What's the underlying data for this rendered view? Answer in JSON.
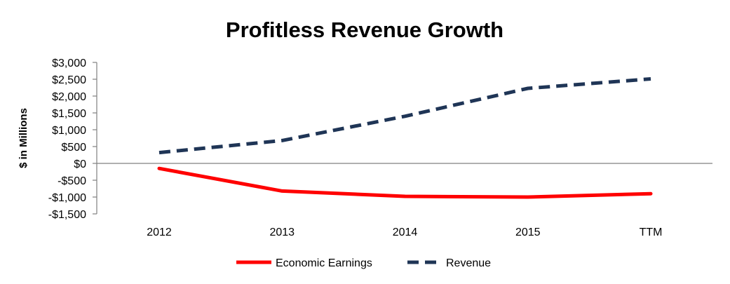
{
  "chart_data": {
    "type": "line",
    "title": "Profitless Revenue Growth",
    "ylabel": "$ in Millions",
    "xlabel": "",
    "categories": [
      "2012",
      "2013",
      "2014",
      "2015",
      "TTM"
    ],
    "ylim": [
      -1500,
      3000
    ],
    "yticks": [
      3000,
      2500,
      2000,
      1500,
      1000,
      500,
      0,
      -500,
      -1000,
      -1500
    ],
    "ytick_labels": [
      "$3,000",
      "$2,500",
      "$2,000",
      "$1,500",
      "$1,000",
      "$500",
      "$0",
      "-$500",
      "-$1,000",
      "-$1,500"
    ],
    "grid": false,
    "legend_position": "bottom",
    "series": [
      {
        "name": "Economic Earnings",
        "values": [
          -150,
          -820,
          -980,
          -1000,
          -900
        ],
        "color": "#ff0000",
        "style": "solid"
      },
      {
        "name": "Revenue",
        "values": [
          320,
          680,
          1400,
          2230,
          2510
        ],
        "color": "#1f3556",
        "style": "dashed"
      }
    ]
  }
}
